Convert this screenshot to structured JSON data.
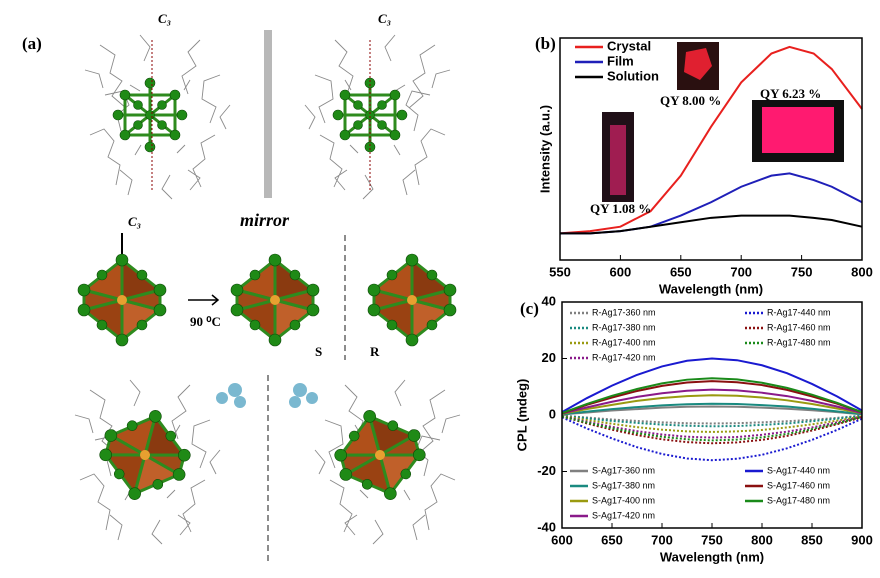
{
  "panel_a": {
    "label": "(a)",
    "axis_labels": [
      "C₃",
      "C₃",
      "C₃"
    ],
    "mirror": "mirror",
    "rotation": "90 ⁰C",
    "enantiomers": [
      "S",
      "R"
    ]
  },
  "chart_data": [
    {
      "type": "line",
      "label": "(b)",
      "xlabel": "Wavelength (nm)",
      "ylabel": "Intensity (a.u.)",
      "x": [
        550,
        575,
        600,
        625,
        650,
        675,
        700,
        725,
        740,
        760,
        775,
        800
      ],
      "xlim": [
        550,
        800
      ],
      "xticks": [
        550,
        600,
        650,
        700,
        750,
        800
      ],
      "ylim": [
        0,
        1
      ],
      "series": [
        {
          "name": "Crystal",
          "color": "#e8201e",
          "style": "solid",
          "values": [
            0.12,
            0.13,
            0.15,
            0.22,
            0.38,
            0.6,
            0.8,
            0.93,
            0.96,
            0.93,
            0.86,
            0.68
          ]
        },
        {
          "name": "Film",
          "color": "#1f1fb8",
          "style": "solid",
          "values": [
            0.12,
            0.12,
            0.13,
            0.15,
            0.2,
            0.26,
            0.33,
            0.38,
            0.39,
            0.36,
            0.33,
            0.26
          ]
        },
        {
          "name": "Solution",
          "color": "#000000",
          "style": "solid",
          "values": [
            0.12,
            0.12,
            0.13,
            0.15,
            0.17,
            0.19,
            0.2,
            0.2,
            0.2,
            0.19,
            0.18,
            0.15
          ]
        }
      ],
      "annotations": [
        "QY  8.00 %",
        "QY 6.23 %",
        "QY  1.08 %"
      ]
    },
    {
      "type": "line",
      "label": "(c)",
      "xlabel": "Wavelength (nm)",
      "ylabel": "CPL (mdeg)",
      "x": [
        600,
        625,
        650,
        675,
        700,
        725,
        750,
        775,
        800,
        825,
        850,
        875,
        900
      ],
      "xlim": [
        600,
        900
      ],
      "xticks": [
        600,
        650,
        700,
        750,
        800,
        850,
        900
      ],
      "ylim": [
        -40,
        40
      ],
      "yticks": [
        -40,
        -20,
        0,
        20,
        40
      ],
      "series": [
        {
          "name": "R-Ag17-360 nm",
          "color": "#808080",
          "style": "dotted",
          "values": [
            -0.2,
            -0.9,
            -1.6,
            -2.1,
            -2.6,
            -2.9,
            -3,
            -2.9,
            -2.6,
            -2.2,
            -1.7,
            -1,
            -0.2
          ]
        },
        {
          "name": "R-Ag17-380 nm",
          "color": "#1a8a80",
          "style": "dotted",
          "values": [
            -0.2,
            -1.2,
            -2.1,
            -2.8,
            -3.4,
            -3.8,
            -4,
            -3.9,
            -3.5,
            -3,
            -2.2,
            -1.3,
            -0.3
          ]
        },
        {
          "name": "R-Ag17-400 nm",
          "color": "#9a9a10",
          "style": "dotted",
          "values": [
            -0.3,
            -1.8,
            -3.1,
            -4.3,
            -5.2,
            -5.8,
            -6,
            -5.8,
            -5.3,
            -4.4,
            -3.3,
            -2,
            -0.5
          ]
        },
        {
          "name": "R-Ag17-420 nm",
          "color": "#8a1a8a",
          "style": "dotted",
          "values": [
            -0.4,
            -2.4,
            -4.2,
            -5.7,
            -6.9,
            -7.7,
            -8,
            -7.8,
            -7,
            -5.9,
            -4.4,
            -2.6,
            -0.6
          ]
        },
        {
          "name": "R-Ag17-440 nm",
          "color": "#1a1ad0",
          "style": "dotted",
          "values": [
            -0.8,
            -4.8,
            -8.3,
            -11.4,
            -13.8,
            -15.4,
            -16,
            -15.5,
            -14.1,
            -11.8,
            -8.8,
            -5.3,
            -1.3
          ]
        },
        {
          "name": "R-Ag17-460 nm",
          "color": "#8a1010",
          "style": "dotted",
          "values": [
            -0.5,
            -3,
            -5.2,
            -7.1,
            -8.6,
            -9.6,
            -10,
            -9.7,
            -8.8,
            -7.4,
            -5.5,
            -3.3,
            -0.8
          ]
        },
        {
          "name": "R-Ag17-480 nm",
          "color": "#1a8a1a",
          "style": "dotted",
          "values": [
            -0.5,
            -2.7,
            -4.7,
            -6.4,
            -7.7,
            -8.6,
            -9,
            -8.7,
            -7.9,
            -6.7,
            -5,
            -3,
            -0.7
          ]
        },
        {
          "name": "S-Ag17-360 nm",
          "color": "#808080",
          "style": "solid",
          "values": [
            0.2,
            0.9,
            1.6,
            2.1,
            2.6,
            2.9,
            3,
            2.9,
            2.6,
            2.2,
            1.7,
            1,
            0.2
          ]
        },
        {
          "name": "S-Ag17-380 nm",
          "color": "#1a8a80",
          "style": "solid",
          "values": [
            0.2,
            1.2,
            2.1,
            2.8,
            3.4,
            3.8,
            4,
            3.9,
            3.5,
            3,
            2.2,
            1.3,
            0.3
          ]
        },
        {
          "name": "S-Ag17-400 nm",
          "color": "#9a9a10",
          "style": "solid",
          "values": [
            0.4,
            2.1,
            3.6,
            5,
            6,
            6.7,
            7,
            6.8,
            6.2,
            5.2,
            3.9,
            2.3,
            0.6
          ]
        },
        {
          "name": "S-Ag17-420 nm",
          "color": "#8a1a8a",
          "style": "solid",
          "values": [
            0.5,
            2.7,
            4.7,
            6.4,
            7.7,
            8.6,
            9,
            8.7,
            7.9,
            6.7,
            5,
            3,
            0.7
          ]
        },
        {
          "name": "S-Ag17-440 nm",
          "color": "#1a1ad0",
          "style": "solid",
          "values": [
            1,
            6,
            10.4,
            14.2,
            17.2,
            19.2,
            20,
            19.4,
            17.6,
            14.8,
            11,
            6.6,
            1.6
          ]
        },
        {
          "name": "S-Ag17-460 nm",
          "color": "#8a1010",
          "style": "solid",
          "values": [
            0.6,
            3.6,
            6.2,
            8.5,
            10.3,
            11.5,
            12,
            11.6,
            10.6,
            8.9,
            6.6,
            4,
            1
          ]
        },
        {
          "name": "S-Ag17-480 nm",
          "color": "#1a8a1a",
          "style": "solid",
          "values": [
            0.7,
            3.9,
            6.8,
            9.2,
            11.2,
            12.5,
            13,
            12.6,
            11.4,
            9.6,
            7.2,
            4.3,
            1
          ]
        }
      ]
    }
  ]
}
